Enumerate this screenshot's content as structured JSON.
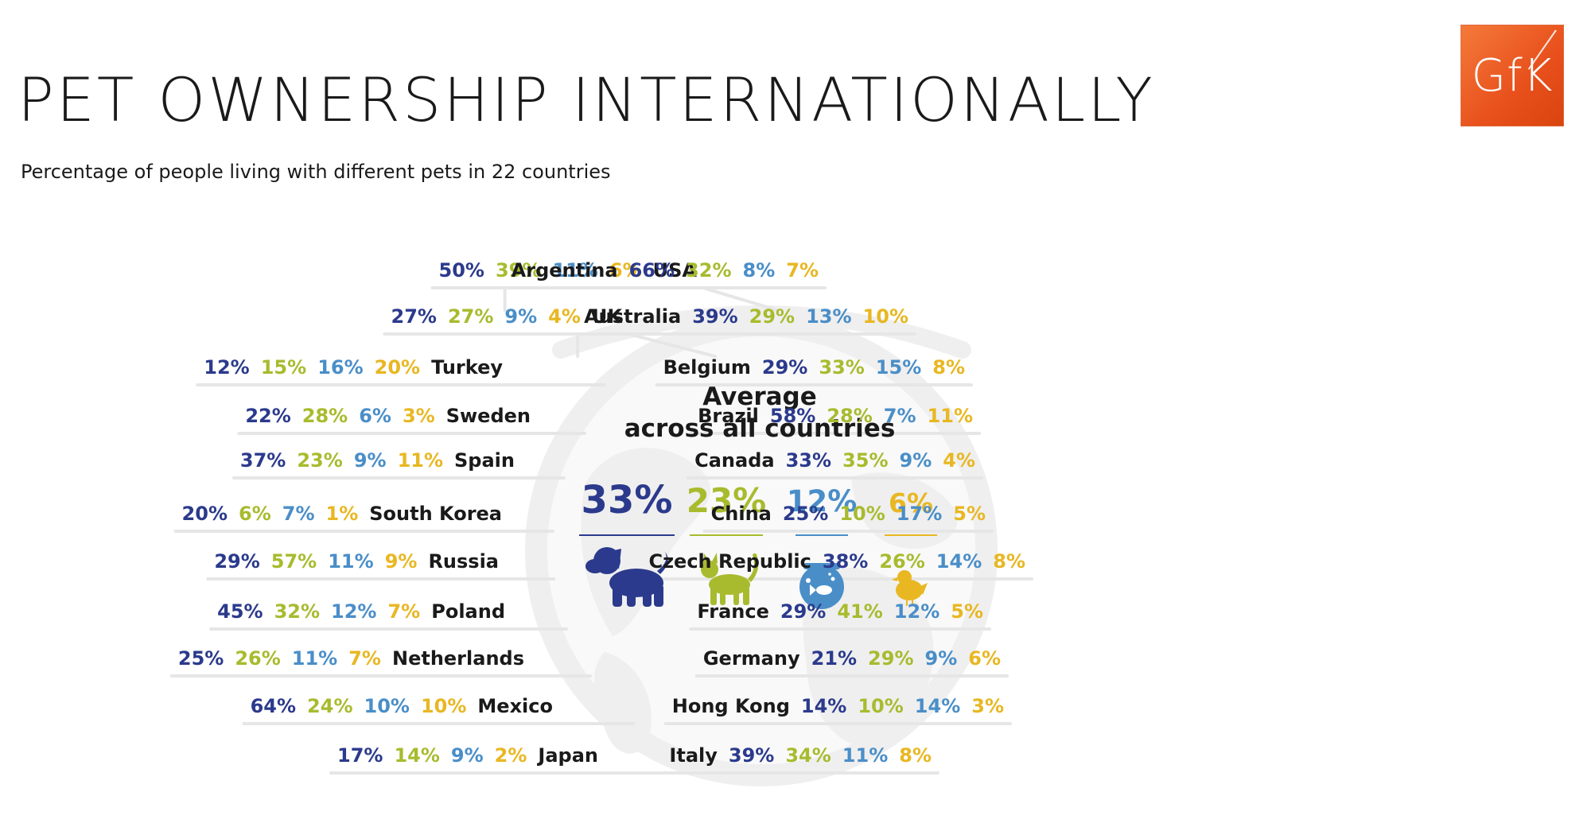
{
  "header": {
    "title": "PET OWNERSHIP INTERNATIONALLY",
    "subtitle": "Percentage of people living with different pets in 22 countries",
    "logo_text": "GfK"
  },
  "colors": {
    "dog": "#2b3a8c",
    "cat": "#a8bb2e",
    "fish": "#4a8ec8",
    "bird": "#e8b722",
    "label": "#1a1a1a",
    "globe": "#efefef",
    "lines": "#e6e6e6",
    "logo": "#e8501c"
  },
  "icons": [
    "dog-icon",
    "cat-icon",
    "fish-icon",
    "bird-icon"
  ],
  "chart_data": {
    "type": "table",
    "series": [
      {
        "name": "dog"
      },
      {
        "name": "cat"
      },
      {
        "name": "fish"
      },
      {
        "name": "bird"
      }
    ],
    "average": {
      "label_line1": "Average",
      "label_line2": "across all countries",
      "values": [
        33,
        23,
        12,
        6
      ]
    },
    "left": [
      {
        "country": "USA",
        "values": [
          50,
          39,
          11,
          6
        ]
      },
      {
        "country": "UK",
        "values": [
          27,
          27,
          9,
          4
        ]
      },
      {
        "country": "Turkey",
        "values": [
          12,
          15,
          16,
          20
        ]
      },
      {
        "country": "Sweden",
        "values": [
          22,
          28,
          6,
          3
        ]
      },
      {
        "country": "Spain",
        "values": [
          37,
          23,
          9,
          11
        ]
      },
      {
        "country": "South Korea",
        "values": [
          20,
          6,
          7,
          1
        ]
      },
      {
        "country": "Russia",
        "values": [
          29,
          57,
          11,
          9
        ]
      },
      {
        "country": "Poland",
        "values": [
          45,
          32,
          12,
          7
        ]
      },
      {
        "country": "Netherlands",
        "values": [
          25,
          26,
          11,
          7
        ]
      },
      {
        "country": "Mexico",
        "values": [
          64,
          24,
          10,
          10
        ]
      },
      {
        "country": "Japan",
        "values": [
          17,
          14,
          9,
          2
        ]
      }
    ],
    "right": [
      {
        "country": "Argentina",
        "values": [
          66,
          32,
          8,
          7
        ]
      },
      {
        "country": "Australia",
        "values": [
          39,
          29,
          13,
          10
        ]
      },
      {
        "country": "Belgium",
        "values": [
          29,
          33,
          15,
          8
        ]
      },
      {
        "country": "Brazil",
        "values": [
          58,
          28,
          7,
          11
        ]
      },
      {
        "country": "Canada",
        "values": [
          33,
          35,
          9,
          4
        ]
      },
      {
        "country": "China",
        "values": [
          25,
          10,
          17,
          5
        ]
      },
      {
        "country": "Czech Republic",
        "values": [
          38,
          26,
          14,
          8
        ]
      },
      {
        "country": "France",
        "values": [
          29,
          41,
          12,
          5
        ]
      },
      {
        "country": "Germany",
        "values": [
          21,
          29,
          9,
          6
        ]
      },
      {
        "country": "Hong Kong",
        "values": [
          14,
          10,
          14,
          3
        ]
      },
      {
        "country": "Italy",
        "values": [
          39,
          34,
          11,
          8
        ]
      }
    ]
  }
}
